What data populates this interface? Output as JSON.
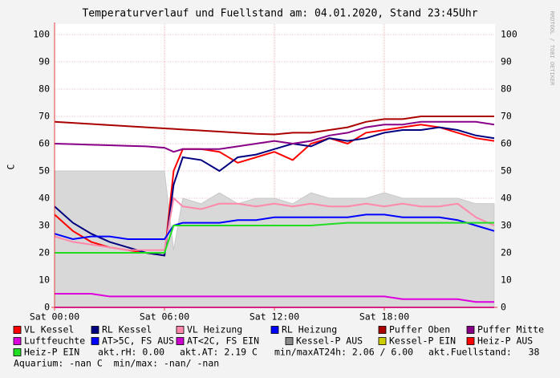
{
  "chart_data": {
    "type": "line",
    "title": "Temperaturverlauf und Fuellstand am: 04.01.2020, Stand 23:45Uhr",
    "y_label": "C",
    "side_label": "RRDTOOL / TOBI OETIKER",
    "xlim": [
      0,
      24
    ],
    "xticks": [
      {
        "value": 0,
        "label": "Sat 00:00"
      },
      {
        "value": 6,
        "label": "Sat 06:00"
      },
      {
        "value": 12,
        "label": "Sat 12:00"
      },
      {
        "value": 18,
        "label": "Sat 18:00"
      }
    ],
    "ylim": [
      0,
      100
    ],
    "yticks": [
      0,
      10,
      20,
      30,
      40,
      50,
      60,
      70,
      80,
      90,
      100
    ],
    "grid": true,
    "x": [
      0,
      1,
      2,
      3,
      4,
      5,
      6,
      6.5,
      7,
      8,
      9,
      10,
      11,
      12,
      13,
      14,
      15,
      16,
      17,
      18,
      19,
      20,
      21,
      22,
      23,
      24
    ],
    "series": [
      {
        "name": "VL Kessel",
        "color": "#ff0000",
        "values": [
          34,
          28,
          24,
          22,
          21,
          20,
          19,
          50,
          58,
          58,
          57,
          53,
          55,
          57,
          54,
          60,
          62,
          60,
          64,
          65,
          66,
          67,
          66,
          64,
          62,
          61
        ]
      },
      {
        "name": "RL Kessel",
        "color": "#000080",
        "values": [
          37,
          31,
          27,
          24,
          22,
          20,
          19,
          45,
          55,
          54,
          50,
          55,
          56,
          58,
          60,
          59,
          62,
          61,
          62,
          64,
          65,
          65,
          66,
          65,
          63,
          62
        ]
      },
      {
        "name": "VL Heizung",
        "color": "#ff88aa",
        "values": [
          26,
          24,
          23,
          22,
          21,
          21,
          21,
          40,
          37,
          36,
          38,
          38,
          37,
          38,
          37,
          38,
          37,
          37,
          38,
          37,
          38,
          37,
          37,
          38,
          33,
          30
        ]
      },
      {
        "name": "RL Heizung",
        "color": "#0000ff",
        "values": [
          27,
          25,
          26,
          26,
          25,
          25,
          25,
          30,
          31,
          31,
          31,
          32,
          32,
          33,
          33,
          33,
          33,
          33,
          34,
          34,
          33,
          33,
          33,
          32,
          30,
          28
        ]
      },
      {
        "name": "Puffer Oben",
        "color": "#aa0000",
        "values": [
          68,
          67.6,
          67.2,
          66.8,
          66.4,
          66,
          65.6,
          65.4,
          65.2,
          64.8,
          64.4,
          64,
          63.6,
          63.4,
          64,
          64,
          65,
          66,
          68,
          69,
          69,
          70,
          70,
          70,
          70,
          70
        ]
      },
      {
        "name": "Puffer Mitte",
        "color": "#880088",
        "values": [
          60,
          59.8,
          59.6,
          59.4,
          59.2,
          59,
          58.5,
          57,
          58,
          58,
          58,
          59,
          60,
          61,
          60,
          61,
          63,
          64,
          66,
          67,
          67,
          68,
          68,
          68,
          68,
          67
        ]
      },
      {
        "name": "Luftfeuchte",
        "color": "#dd00dd",
        "values": [
          5,
          5,
          5,
          4,
          4,
          4,
          4,
          4,
          4,
          4,
          4,
          4,
          4,
          4,
          4,
          4,
          4,
          4,
          4,
          4,
          3,
          3,
          3,
          3,
          2,
          2
        ]
      },
      {
        "name": "AT>5C, FS AUS",
        "color": "#0000ff",
        "values": [
          null,
          null,
          null,
          null,
          null,
          null,
          null,
          null,
          null,
          null,
          null,
          null,
          null,
          null,
          null,
          null,
          null,
          null,
          null,
          null,
          null,
          null,
          null,
          null,
          null,
          null
        ]
      },
      {
        "name": "AT<2C, FS EIN",
        "color": "#cc00cc",
        "values": [
          0,
          0,
          0,
          0,
          0,
          0,
          0,
          0,
          0,
          0,
          0,
          0,
          0,
          0,
          0,
          0,
          0,
          0,
          0,
          0,
          0,
          0,
          0,
          0,
          0,
          0
        ]
      },
      {
        "name": "Kessel-P AUS",
        "color": "#888888",
        "type": "area",
        "values": [
          50,
          50,
          50,
          50,
          50,
          50,
          50,
          21,
          40,
          38,
          42,
          38,
          40,
          40,
          38,
          42,
          40,
          40,
          40,
          42,
          40,
          40,
          40,
          40,
          38,
          38
        ]
      },
      {
        "name": "Kessel-P EIN",
        "color": "#cccc00",
        "values": [
          null,
          null,
          null,
          null,
          null,
          null,
          null,
          null,
          null,
          null,
          null,
          null,
          null,
          null,
          null,
          null,
          null,
          null,
          null,
          null,
          null,
          null,
          null,
          null,
          null,
          null
        ]
      },
      {
        "name": "Heiz-P AUS",
        "color": "#ff0000",
        "values": [
          null,
          null,
          null,
          null,
          null,
          null,
          null,
          null,
          null,
          null,
          null,
          null,
          null,
          null,
          null,
          null,
          null,
          null,
          null,
          null,
          null,
          null,
          null,
          null,
          null,
          null
        ]
      },
      {
        "name": "Heiz-P EIN",
        "color": "#22dd22",
        "values": [
          20,
          20,
          20,
          20,
          20,
          20,
          20,
          30,
          30,
          30,
          30,
          30,
          30,
          30,
          30,
          30,
          30.5,
          31,
          31,
          31,
          31,
          31,
          31,
          31,
          31,
          31
        ]
      }
    ],
    "status": [
      "akt.rH: 0.00",
      "akt.AT: 2.19 C",
      "min/maxAT24h: 2.06 / 6.00",
      "akt.Fuellstand:   38"
    ],
    "footer": "Aquarium: -nan C  min/max: -nan/ -nan"
  }
}
